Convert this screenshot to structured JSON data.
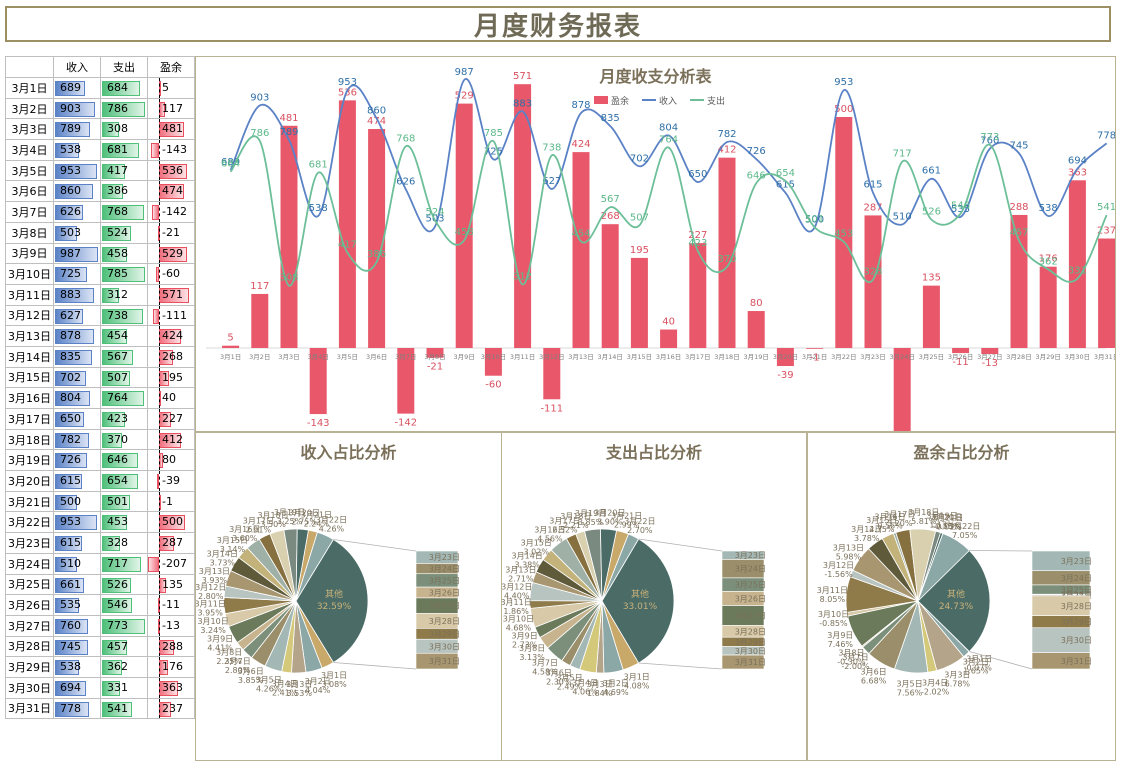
{
  "title": "月度财务报表",
  "table": {
    "headers": [
      "",
      "收入",
      "支出",
      "盈余"
    ],
    "rows": [
      [
        "3月1日",
        689,
        684,
        5
      ],
      [
        "3月2日",
        903,
        786,
        117
      ],
      [
        "3月3日",
        789,
        308,
        481
      ],
      [
        "3月4日",
        538,
        681,
        -143
      ],
      [
        "3月5日",
        953,
        417,
        536
      ],
      [
        "3月6日",
        860,
        386,
        474
      ],
      [
        "3月7日",
        626,
        768,
        -142
      ],
      [
        "3月8日",
        503,
        524,
        -21
      ],
      [
        "3月9日",
        987,
        458,
        529
      ],
      [
        "3月10日",
        725,
        785,
        -60
      ],
      [
        "3月11日",
        883,
        312,
        571
      ],
      [
        "3月12日",
        627,
        738,
        -111
      ],
      [
        "3月13日",
        878,
        454,
        424
      ],
      [
        "3月14日",
        835,
        567,
        268
      ],
      [
        "3月15日",
        702,
        507,
        195
      ],
      [
        "3月16日",
        804,
        764,
        40
      ],
      [
        "3月17日",
        650,
        423,
        227
      ],
      [
        "3月18日",
        782,
        370,
        412
      ],
      [
        "3月19日",
        726,
        646,
        80
      ],
      [
        "3月20日",
        615,
        654,
        -39
      ],
      [
        "3月21日",
        500,
        501,
        -1
      ],
      [
        "3月22日",
        953,
        453,
        500
      ],
      [
        "3月23日",
        615,
        328,
        287
      ],
      [
        "3月24日",
        510,
        717,
        -207
      ],
      [
        "3月25日",
        661,
        526,
        135
      ],
      [
        "3月26日",
        535,
        546,
        -11
      ],
      [
        "3月27日",
        760,
        773,
        -13
      ],
      [
        "3月28日",
        745,
        457,
        288
      ],
      [
        "3月29日",
        538,
        362,
        176
      ],
      [
        "3月30日",
        694,
        331,
        363
      ],
      [
        "3月31日",
        778,
        541,
        237
      ]
    ]
  },
  "chart_data": [
    {
      "type": "bar",
      "title": "月度收支分析表",
      "legend": [
        "盈余",
        "收入",
        "支出"
      ],
      "legend_position": "top",
      "categories": [
        "3月1日",
        "3月2日",
        "3月3日",
        "3月4日",
        "3月5日",
        "3月6日",
        "3月7日",
        "3月8日",
        "3月9日",
        "3月10日",
        "3月11日",
        "3月12日",
        "3月13日",
        "3月14日",
        "3月15日",
        "3月16日",
        "3月17日",
        "3月18日",
        "3月19日",
        "3月20日",
        "3月21日",
        "3月22日",
        "3月23日",
        "3月24日",
        "3月25日",
        "3月26日",
        "3月27日",
        "3月28日",
        "3月29日",
        "3月30日",
        "3月31日"
      ],
      "series": [
        {
          "name": "盈余",
          "kind": "bar",
          "color": "#e8586a",
          "values": [
            5,
            117,
            481,
            -143,
            536,
            474,
            -142,
            -21,
            529,
            -60,
            571,
            -111,
            424,
            268,
            195,
            40,
            227,
            412,
            80,
            -39,
            -1,
            500,
            287,
            -207,
            135,
            -11,
            -13,
            288,
            176,
            363,
            237
          ]
        },
        {
          "name": "收入",
          "kind": "line",
          "color": "#5b82c6",
          "values": [
            689,
            903,
            789,
            538,
            953,
            860,
            626,
            503,
            987,
            725,
            883,
            627,
            878,
            835,
            702,
            804,
            650,
            782,
            726,
            615,
            500,
            953,
            615,
            510,
            661,
            535,
            760,
            745,
            538,
            694,
            778
          ]
        },
        {
          "name": "支出",
          "kind": "line",
          "color": "#6cbf98",
          "values": [
            684,
            786,
            308,
            681,
            417,
            386,
            768,
            524,
            458,
            785,
            312,
            738,
            454,
            567,
            507,
            764,
            423,
            370,
            646,
            654,
            501,
            453,
            328,
            717,
            526,
            546,
            773,
            457,
            362,
            331,
            541
          ]
        }
      ],
      "grid": false
    },
    {
      "type": "pie",
      "title": "收入占比分析",
      "other_label": "其他",
      "other_pct": "32.59%"
    },
    {
      "type": "pie",
      "title": "支出占比分析",
      "other_label": "其他",
      "other_pct": "33.01%"
    },
    {
      "type": "pie",
      "title": "盈余占比分析",
      "other_label": "其他",
      "other_pct": "24.73%"
    }
  ],
  "colors": {
    "accent": "#9b8f63",
    "title": "#6f6a56",
    "income": "#5b82c6",
    "expense": "#4fbf7a",
    "surplus": "#e8505f"
  }
}
